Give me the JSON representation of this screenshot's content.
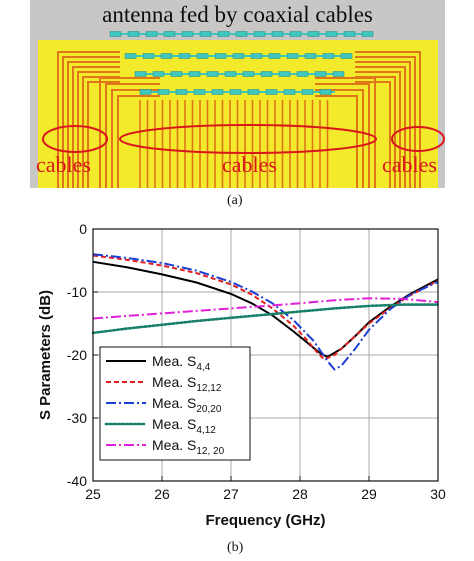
{
  "figure_a": {
    "title": "antenna fed by coaxial cables",
    "cable_labels": [
      "cables",
      "cables",
      "cables"
    ],
    "caption": "(a)"
  },
  "figure_b": {
    "caption": "(b)"
  },
  "colors": {
    "board": "#f2ea2a",
    "trace": "#e0761a",
    "element": "#3ec8c0",
    "annotation": "#d9161c"
  },
  "chart_data": {
    "type": "line",
    "xlabel": "Frequency (GHz)",
    "ylabel": "S Parameters (dB)",
    "xlim": [
      25,
      30
    ],
    "ylim": [
      -40,
      0
    ],
    "xticks": [
      25,
      26,
      27,
      28,
      29,
      30
    ],
    "yticks": [
      0,
      -10,
      -20,
      -30,
      -40
    ],
    "grid": true,
    "legend_position": "bottom-left",
    "series": [
      {
        "name": "Mea. S4,4",
        "label_main": "Mea. S",
        "label_sub": "4,4",
        "color": "#000000",
        "dash": "",
        "x": [
          25,
          25.5,
          26,
          26.5,
          27,
          27.3,
          27.6,
          27.9,
          28.1,
          28.3,
          28.4,
          28.6,
          28.8,
          29,
          29.3,
          29.6,
          30
        ],
        "y": [
          -5.2,
          -6.1,
          -7.2,
          -8.5,
          -10.3,
          -11.8,
          -13.7,
          -16.2,
          -18.0,
          -19.8,
          -20.3,
          -19.0,
          -17.0,
          -14.8,
          -12.4,
          -10.3,
          -8.0
        ]
      },
      {
        "name": "Mea. S12,12",
        "label_main": "Mea. S",
        "label_sub": "12,12",
        "color": "#e02020",
        "dash": "5,3",
        "x": [
          25,
          25.5,
          26,
          26.5,
          27,
          27.3,
          27.6,
          27.9,
          28.1,
          28.25,
          28.35,
          28.5,
          28.7,
          29,
          29.3,
          29.6,
          30
        ],
        "y": [
          -4.2,
          -4.9,
          -5.8,
          -7.0,
          -8.8,
          -10.4,
          -12.6,
          -15.3,
          -17.6,
          -19.6,
          -20.7,
          -20.0,
          -18.0,
          -15.0,
          -12.6,
          -10.5,
          -8.2
        ]
      },
      {
        "name": "Mea. S20,20",
        "label_main": "Mea. S",
        "label_sub": "20,20",
        "color": "#1a3dd4",
        "dash": "10,3,2,3",
        "x": [
          25,
          25.5,
          26,
          26.5,
          27,
          27.3,
          27.6,
          27.9,
          28.2,
          28.4,
          28.5,
          28.6,
          28.8,
          29,
          29.3,
          29.6,
          30
        ],
        "y": [
          -4.0,
          -4.6,
          -5.4,
          -6.6,
          -8.4,
          -9.9,
          -11.8,
          -14.4,
          -17.8,
          -21.0,
          -22.3,
          -21.7,
          -19.0,
          -16.0,
          -12.8,
          -10.4,
          -8.4
        ]
      },
      {
        "name": "Mea. S4,12",
        "label_main": "Mea. S",
        "label_sub": "4,12",
        "color": "#17806a",
        "dash": "2,2",
        "x": [
          25,
          25.5,
          26,
          26.5,
          27,
          27.5,
          28,
          28.5,
          29,
          29.5,
          30
        ],
        "y": [
          -16.5,
          -15.8,
          -15.2,
          -14.6,
          -14.1,
          -13.6,
          -13.1,
          -12.6,
          -12.2,
          -12.0,
          -12.0
        ]
      },
      {
        "name": "Mea. S12, 20",
        "label_main": "Mea. S",
        "label_sub": "12, 20",
        "color": "#e020d8",
        "dash": "10,3,2,3",
        "x": [
          25,
          25.5,
          26,
          26.5,
          27,
          27.5,
          28,
          28.5,
          29,
          29.5,
          30
        ],
        "y": [
          -14.2,
          -13.8,
          -13.4,
          -13.0,
          -12.6,
          -12.2,
          -11.8,
          -11.3,
          -11.0,
          -11.1,
          -11.6
        ]
      }
    ]
  }
}
